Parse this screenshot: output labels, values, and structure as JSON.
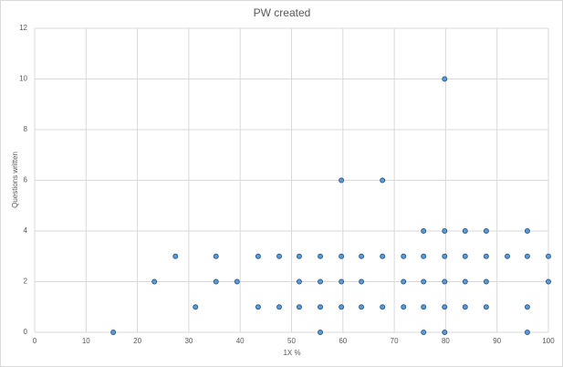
{
  "chart_data": {
    "type": "scatter",
    "title": "PW created",
    "x_label": "1X %",
    "y_label": "Questions written",
    "x": [
      15.3,
      23.3,
      27.4,
      31.3,
      35.3,
      35.3,
      39.4,
      43.5,
      43.5,
      47.6,
      47.6,
      51.5,
      51.5,
      51.5,
      55.6,
      55.6,
      55.6,
      55.6,
      59.7,
      59.7,
      59.7,
      59.7,
      63.6,
      63.6,
      63.6,
      67.7,
      67.7,
      67.7,
      71.8,
      71.8,
      71.8,
      75.7,
      75.7,
      75.7,
      75.7,
      75.7,
      79.8,
      79.8,
      79.8,
      79.8,
      79.8,
      79.8,
      83.8,
      83.8,
      83.8,
      83.8,
      87.9,
      87.9,
      87.9,
      87.9,
      92.0,
      95.9,
      95.9,
      95.9,
      95.9,
      100,
      100
    ],
    "y": [
      0,
      2,
      3,
      1,
      3,
      2,
      2,
      3,
      1,
      3,
      1,
      3,
      2,
      1,
      3,
      2,
      1,
      0,
      6,
      3,
      2,
      1,
      3,
      2,
      1,
      6,
      3,
      1,
      3,
      2,
      1,
      4,
      3,
      2,
      1,
      0,
      10,
      4,
      3,
      2,
      1,
      0,
      4,
      3,
      2,
      1,
      4,
      3,
      2,
      1,
      3,
      4,
      3,
      1,
      0,
      3,
      2
    ],
    "xlim": [
      0,
      100
    ],
    "ylim": [
      0,
      12
    ],
    "xticks": [
      0,
      10,
      20,
      30,
      40,
      50,
      60,
      70,
      80,
      90,
      100
    ],
    "yticks": [
      0,
      2,
      4,
      6,
      8,
      10,
      12
    ],
    "grid": true,
    "color": "#5b9bd5",
    "edge_color": "#2f5f8f"
  }
}
